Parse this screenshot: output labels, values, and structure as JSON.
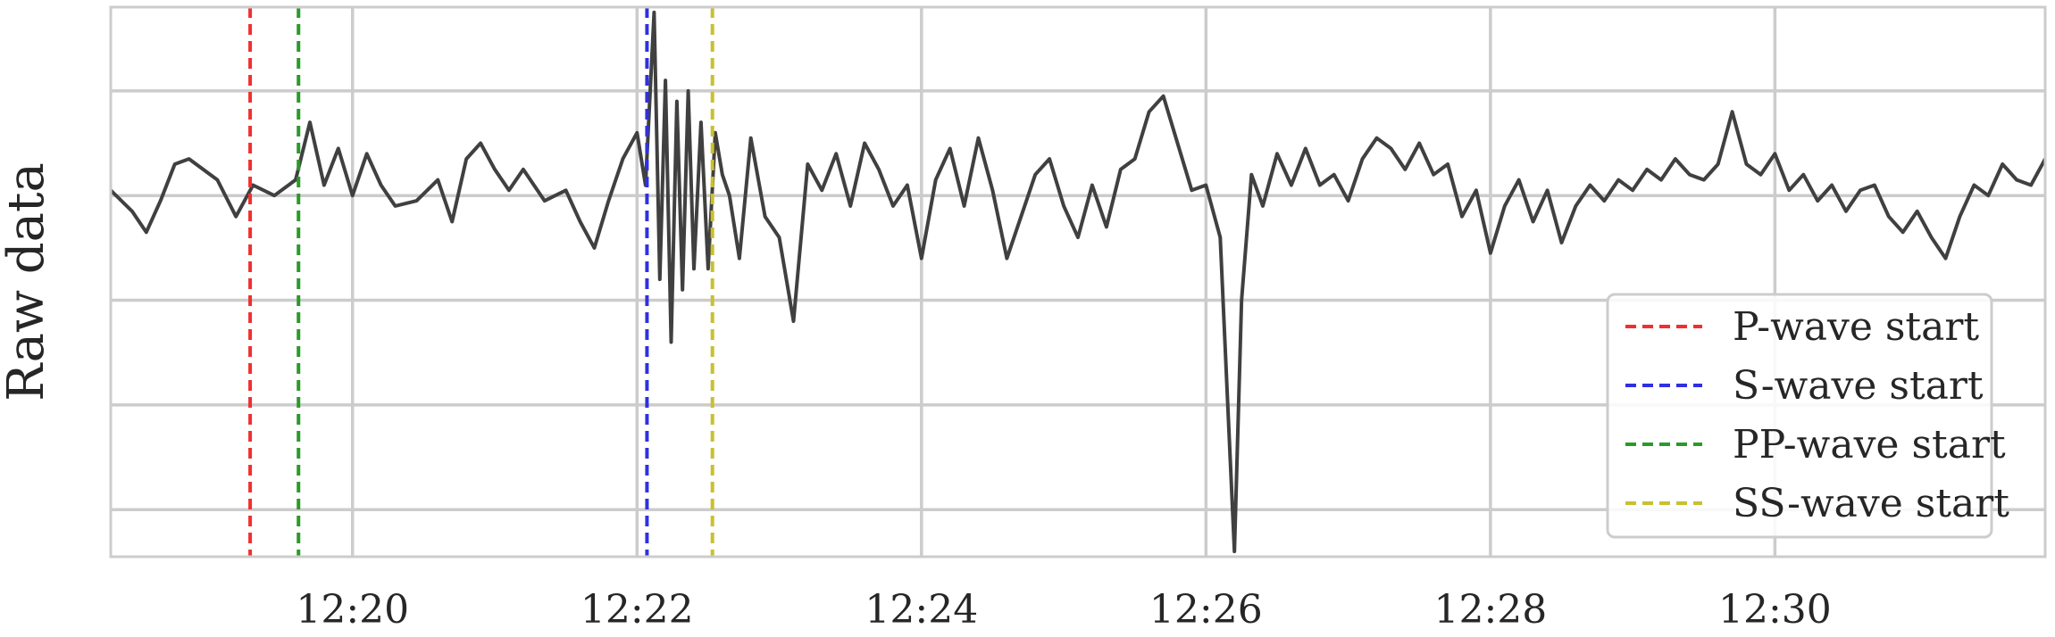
{
  "chart_data": {
    "type": "line",
    "title": "",
    "xlabel": "",
    "ylabel": "Raw data",
    "x_ticks": [
      "12:20",
      "12:22",
      "12:24",
      "12:26",
      "12:28",
      "12:30"
    ],
    "x_tick_minutes": [
      20,
      22,
      24,
      26,
      28,
      30
    ],
    "xlim_minutes": [
      18.3,
      31.9
    ],
    "ylim": [
      -3.45,
      1.8
    ],
    "y_gridlines": [
      -3.0,
      -2.0,
      -1.0,
      0.0,
      1.0
    ],
    "grid": true,
    "legend_position": "lower-right",
    "trace": {
      "color": "#404040",
      "points": [
        [
          18.3,
          0.05
        ],
        [
          18.45,
          -0.15
        ],
        [
          18.55,
          -0.35
        ],
        [
          18.65,
          -0.05
        ],
        [
          18.75,
          0.3
        ],
        [
          18.85,
          0.35
        ],
        [
          18.95,
          0.25
        ],
        [
          19.05,
          0.15
        ],
        [
          19.18,
          -0.2
        ],
        [
          19.3,
          0.1
        ],
        [
          19.45,
          0.0
        ],
        [
          19.6,
          0.15
        ],
        [
          19.7,
          0.7
        ],
        [
          19.8,
          0.1
        ],
        [
          19.9,
          0.45
        ],
        [
          20.0,
          0.0
        ],
        [
          20.1,
          0.4
        ],
        [
          20.2,
          0.1
        ],
        [
          20.3,
          -0.1
        ],
        [
          20.45,
          -0.05
        ],
        [
          20.6,
          0.15
        ],
        [
          20.7,
          -0.25
        ],
        [
          20.8,
          0.35
        ],
        [
          20.9,
          0.5
        ],
        [
          21.0,
          0.25
        ],
        [
          21.1,
          0.05
        ],
        [
          21.2,
          0.25
        ],
        [
          21.35,
          -0.05
        ],
        [
          21.5,
          0.05
        ],
        [
          21.6,
          -0.25
        ],
        [
          21.7,
          -0.5
        ],
        [
          21.8,
          -0.05
        ],
        [
          21.9,
          0.35
        ],
        [
          22.0,
          0.6
        ],
        [
          22.06,
          0.1
        ],
        [
          22.12,
          1.75
        ],
        [
          22.16,
          -0.8
        ],
        [
          22.2,
          1.1
        ],
        [
          22.24,
          -1.4
        ],
        [
          22.28,
          0.9
        ],
        [
          22.32,
          -0.9
        ],
        [
          22.36,
          1.0
        ],
        [
          22.4,
          -0.7
        ],
        [
          22.45,
          0.7
        ],
        [
          22.5,
          -0.7
        ],
        [
          22.55,
          0.6
        ],
        [
          22.6,
          0.2
        ],
        [
          22.65,
          0.0
        ],
        [
          22.72,
          -0.6
        ],
        [
          22.8,
          0.55
        ],
        [
          22.9,
          -0.2
        ],
        [
          23.0,
          -0.4
        ],
        [
          23.1,
          -1.2
        ],
        [
          23.2,
          0.3
        ],
        [
          23.3,
          0.05
        ],
        [
          23.4,
          0.4
        ],
        [
          23.5,
          -0.1
        ],
        [
          23.6,
          0.5
        ],
        [
          23.7,
          0.25
        ],
        [
          23.8,
          -0.1
        ],
        [
          23.9,
          0.1
        ],
        [
          24.0,
          -0.6
        ],
        [
          24.1,
          0.15
        ],
        [
          24.2,
          0.45
        ],
        [
          24.3,
          -0.1
        ],
        [
          24.4,
          0.55
        ],
        [
          24.5,
          0.05
        ],
        [
          24.6,
          -0.6
        ],
        [
          24.7,
          -0.2
        ],
        [
          24.8,
          0.2
        ],
        [
          24.9,
          0.35
        ],
        [
          25.0,
          -0.1
        ],
        [
          25.1,
          -0.4
        ],
        [
          25.2,
          0.1
        ],
        [
          25.3,
          -0.3
        ],
        [
          25.4,
          0.25
        ],
        [
          25.5,
          0.35
        ],
        [
          25.6,
          0.8
        ],
        [
          25.7,
          0.95
        ],
        [
          25.8,
          0.5
        ],
        [
          25.9,
          0.05
        ],
        [
          26.0,
          0.1
        ],
        [
          26.1,
          -0.4
        ],
        [
          26.15,
          -1.9
        ],
        [
          26.2,
          -3.4
        ],
        [
          26.25,
          -1.0
        ],
        [
          26.32,
          0.2
        ],
        [
          26.4,
          -0.1
        ],
        [
          26.5,
          0.4
        ],
        [
          26.6,
          0.1
        ],
        [
          26.7,
          0.45
        ],
        [
          26.8,
          0.1
        ],
        [
          26.9,
          0.2
        ],
        [
          27.0,
          -0.05
        ],
        [
          27.1,
          0.35
        ],
        [
          27.2,
          0.55
        ],
        [
          27.3,
          0.45
        ],
        [
          27.4,
          0.25
        ],
        [
          27.5,
          0.5
        ],
        [
          27.6,
          0.2
        ],
        [
          27.7,
          0.3
        ],
        [
          27.8,
          -0.2
        ],
        [
          27.9,
          0.05
        ],
        [
          28.0,
          -0.55
        ],
        [
          28.1,
          -0.1
        ],
        [
          28.2,
          0.15
        ],
        [
          28.3,
          -0.25
        ],
        [
          28.4,
          0.05
        ],
        [
          28.5,
          -0.45
        ],
        [
          28.6,
          -0.1
        ],
        [
          28.7,
          0.1
        ],
        [
          28.8,
          -0.05
        ],
        [
          28.9,
          0.15
        ],
        [
          29.0,
          0.05
        ],
        [
          29.1,
          0.25
        ],
        [
          29.2,
          0.15
        ],
        [
          29.3,
          0.35
        ],
        [
          29.4,
          0.2
        ],
        [
          29.5,
          0.15
        ],
        [
          29.6,
          0.3
        ],
        [
          29.7,
          0.8
        ],
        [
          29.8,
          0.3
        ],
        [
          29.9,
          0.2
        ],
        [
          30.0,
          0.4
        ],
        [
          30.1,
          0.05
        ],
        [
          30.2,
          0.2
        ],
        [
          30.3,
          -0.05
        ],
        [
          30.4,
          0.1
        ],
        [
          30.5,
          -0.15
        ],
        [
          30.6,
          0.05
        ],
        [
          30.7,
          0.1
        ],
        [
          30.8,
          -0.2
        ],
        [
          30.9,
          -0.35
        ],
        [
          31.0,
          -0.15
        ],
        [
          31.1,
          -0.4
        ],
        [
          31.2,
          -0.6
        ],
        [
          31.3,
          -0.2
        ],
        [
          31.4,
          0.1
        ],
        [
          31.5,
          0.0
        ],
        [
          31.6,
          0.3
        ],
        [
          31.7,
          0.15
        ],
        [
          31.8,
          0.1
        ],
        [
          31.9,
          0.35
        ]
      ]
    },
    "markers": [
      {
        "name": "P-wave start",
        "x_minutes": 19.28,
        "color": "#f03030"
      },
      {
        "name": "S-wave start",
        "x_minutes": 22.07,
        "color": "#3030e0"
      },
      {
        "name": "PP-wave start",
        "x_minutes": 19.62,
        "color": "#2a9a2a"
      },
      {
        "name": "SS-wave start",
        "x_minutes": 22.53,
        "color": "#c8c030"
      }
    ]
  }
}
